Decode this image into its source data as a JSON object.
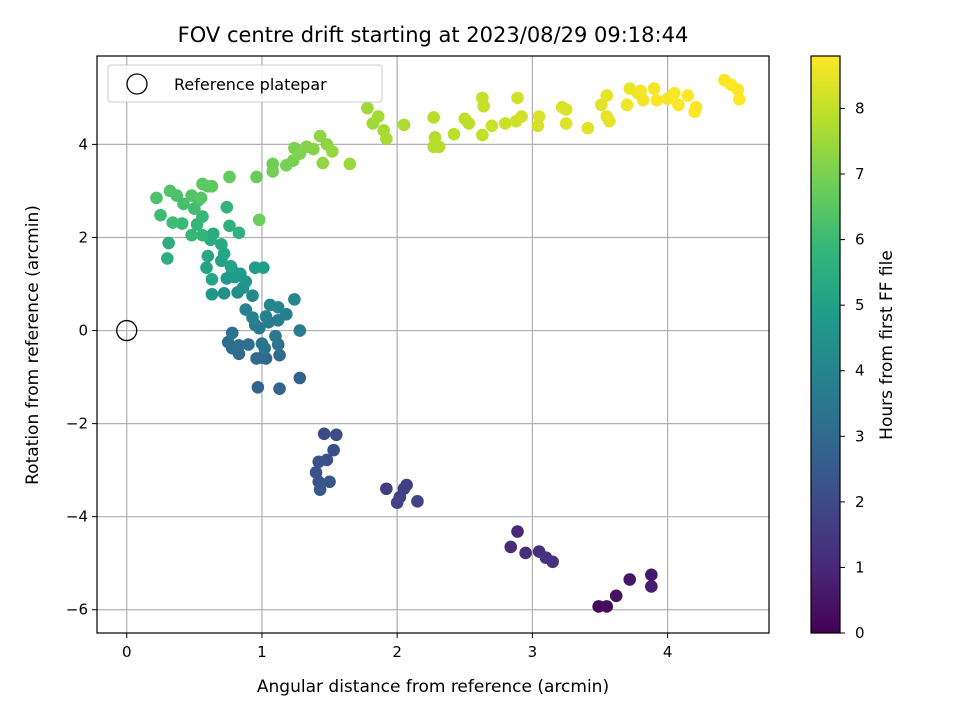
{
  "chart_data": {
    "type": "scatter",
    "title": "FOV centre drift starting at 2023/08/29 09:18:44",
    "xlabel": "Angular distance from reference (arcmin)",
    "ylabel": "Rotation from reference (arcmin)",
    "xlim": [
      -0.22,
      4.75
    ],
    "ylim": [
      -6.5,
      5.9
    ],
    "xticks": [
      0,
      1,
      2,
      3,
      4
    ],
    "yticks": [
      -6,
      -4,
      -2,
      0,
      2,
      4
    ],
    "xtick_labels": [
      "0",
      "1",
      "2",
      "3",
      "4"
    ],
    "ytick_labels": [
      "−6",
      "−4",
      "−2",
      "0",
      "2",
      "4"
    ],
    "grid": true,
    "legend": {
      "position": "top-left",
      "entries": [
        {
          "label": "Reference platepar",
          "marker": "open-circle",
          "x": 0,
          "y": 0
        }
      ]
    },
    "colorbar": {
      "label": "Hours from first FF file",
      "range": [
        0,
        8.8
      ],
      "ticks": [
        0,
        1,
        2,
        3,
        4,
        5,
        6,
        7,
        8
      ],
      "tick_labels": [
        "0",
        "1",
        "2",
        "3",
        "4",
        "5",
        "6",
        "7",
        "8"
      ],
      "colormap": "viridis"
    },
    "colormap_stops": [
      "#440154",
      "#482878",
      "#3e4989",
      "#31688e",
      "#26828e",
      "#1f9e89",
      "#35b779",
      "#6ece58",
      "#b5de2b",
      "#fde725"
    ],
    "points": [
      [
        3.49,
        -5.93,
        0.2
      ],
      [
        3.55,
        -5.93,
        0.3
      ],
      [
        3.62,
        -5.7,
        0.4
      ],
      [
        3.72,
        -5.35,
        0.5
      ],
      [
        3.88,
        -5.25,
        0.6
      ],
      [
        3.88,
        -5.5,
        0.7
      ],
      [
        2.89,
        -4.32,
        1.0
      ],
      [
        2.84,
        -4.65,
        1.1
      ],
      [
        2.95,
        -4.78,
        1.15
      ],
      [
        3.05,
        -4.75,
        1.2
      ],
      [
        3.1,
        -4.88,
        1.25
      ],
      [
        3.15,
        -4.97,
        1.3
      ],
      [
        1.92,
        -3.4,
        1.6
      ],
      [
        2.05,
        -3.4,
        1.65
      ],
      [
        2.07,
        -3.32,
        1.7
      ],
      [
        2.02,
        -3.58,
        1.75
      ],
      [
        2.0,
        -3.7,
        1.8
      ],
      [
        2.15,
        -3.67,
        1.85
      ],
      [
        1.46,
        -2.22,
        2.0
      ],
      [
        1.55,
        -2.24,
        2.05
      ],
      [
        1.53,
        -2.57,
        2.1
      ],
      [
        1.48,
        -2.78,
        2.15
      ],
      [
        1.42,
        -2.82,
        2.2
      ],
      [
        1.4,
        -3.05,
        2.25
      ],
      [
        1.42,
        -3.25,
        2.3
      ],
      [
        1.5,
        -3.25,
        2.35
      ],
      [
        1.43,
        -3.42,
        2.4
      ],
      [
        1.28,
        -1.02,
        2.75
      ],
      [
        0.97,
        -1.22,
        2.8
      ],
      [
        1.13,
        -1.25,
        2.82
      ],
      [
        1.0,
        -0.58,
        2.9
      ],
      [
        1.03,
        -0.6,
        2.95
      ],
      [
        0.96,
        -0.6,
        3.0
      ],
      [
        1.13,
        -0.53,
        3.05
      ],
      [
        0.83,
        -0.5,
        3.1
      ],
      [
        0.78,
        -0.38,
        3.15
      ],
      [
        0.83,
        -0.32,
        3.2
      ],
      [
        0.9,
        -0.3,
        3.22
      ],
      [
        0.75,
        -0.25,
        3.25
      ],
      [
        0.78,
        -0.05,
        3.3
      ],
      [
        1.02,
        -0.38,
        3.35
      ],
      [
        1.12,
        -0.3,
        3.4
      ],
      [
        1.0,
        -0.28,
        3.45
      ],
      [
        1.1,
        -0.12,
        3.5
      ],
      [
        0.98,
        0.05,
        3.55
      ],
      [
        0.95,
        0.12,
        3.6
      ],
      [
        1.05,
        0.18,
        3.65
      ],
      [
        1.12,
        0.22,
        3.7
      ],
      [
        1.28,
        0.0,
        3.75
      ],
      [
        1.18,
        0.35,
        3.8
      ],
      [
        1.03,
        0.3,
        3.85
      ],
      [
        0.93,
        0.28,
        3.9
      ],
      [
        0.88,
        0.45,
        3.95
      ],
      [
        1.06,
        0.55,
        4.0
      ],
      [
        1.12,
        0.5,
        4.05
      ],
      [
        1.24,
        0.67,
        4.1
      ],
      [
        0.93,
        0.75,
        4.2
      ],
      [
        0.82,
        0.82,
        4.3
      ],
      [
        0.86,
        0.92,
        4.4
      ],
      [
        0.72,
        0.8,
        4.5
      ],
      [
        0.63,
        0.78,
        4.6
      ],
      [
        0.88,
        1.05,
        4.65
      ],
      [
        0.74,
        1.12,
        4.7
      ],
      [
        0.8,
        1.15,
        4.75
      ],
      [
        0.84,
        1.22,
        4.8
      ],
      [
        0.78,
        1.3,
        4.85
      ],
      [
        0.95,
        1.35,
        4.9
      ],
      [
        1.01,
        1.35,
        4.95
      ],
      [
        0.77,
        1.38,
        5.0
      ],
      [
        0.7,
        1.5,
        5.05
      ],
      [
        0.59,
        1.35,
        5.1
      ],
      [
        0.63,
        1.1,
        5.15
      ],
      [
        0.72,
        1.65,
        5.2
      ],
      [
        0.6,
        1.6,
        5.25
      ],
      [
        0.7,
        1.85,
        5.3
      ],
      [
        0.62,
        1.95,
        5.35
      ],
      [
        0.64,
        2.08,
        5.4
      ],
      [
        0.31,
        1.88,
        5.45
      ],
      [
        0.3,
        1.55,
        5.5
      ],
      [
        0.76,
        2.25,
        5.6
      ],
      [
        0.83,
        2.1,
        5.65
      ],
      [
        0.74,
        2.65,
        5.7
      ],
      [
        0.56,
        2.05,
        5.75
      ],
      [
        0.52,
        2.28,
        5.8
      ],
      [
        0.48,
        2.05,
        5.85
      ],
      [
        0.56,
        2.45,
        5.9
      ],
      [
        0.41,
        2.3,
        5.95
      ],
      [
        0.25,
        2.48,
        6.0
      ],
      [
        0.34,
        2.32,
        6.05
      ],
      [
        0.5,
        2.62,
        6.1
      ],
      [
        0.42,
        2.72,
        6.15
      ],
      [
        0.53,
        2.8,
        6.2
      ],
      [
        0.37,
        2.9,
        6.25
      ],
      [
        0.22,
        2.85,
        6.3
      ],
      [
        0.32,
        3.0,
        6.35
      ],
      [
        0.48,
        2.9,
        6.4
      ],
      [
        0.55,
        2.85,
        6.45
      ],
      [
        0.6,
        3.1,
        6.5
      ],
      [
        0.56,
        3.15,
        6.55
      ],
      [
        0.63,
        3.1,
        6.6
      ],
      [
        0.76,
        3.3,
        6.7
      ],
      [
        0.96,
        3.3,
        6.75
      ],
      [
        0.98,
        2.38,
        6.8
      ],
      [
        1.08,
        3.58,
        6.85
      ],
      [
        1.08,
        3.42,
        6.9
      ],
      [
        1.18,
        3.55,
        6.95
      ],
      [
        1.23,
        3.65,
        7.0
      ],
      [
        1.24,
        3.92,
        7.05
      ],
      [
        1.28,
        3.8,
        7.1
      ],
      [
        1.33,
        3.95,
        7.15
      ],
      [
        1.38,
        3.9,
        7.2
      ],
      [
        1.43,
        4.18,
        7.25
      ],
      [
        1.48,
        4.0,
        7.3
      ],
      [
        1.45,
        3.6,
        7.35
      ],
      [
        1.52,
        3.85,
        7.4
      ],
      [
        1.65,
        3.58,
        7.45
      ],
      [
        1.78,
        4.78,
        7.5
      ],
      [
        1.82,
        4.45,
        7.55
      ],
      [
        1.86,
        4.6,
        7.6
      ],
      [
        1.9,
        4.3,
        7.62
      ],
      [
        1.92,
        4.12,
        7.65
      ],
      [
        2.05,
        4.42,
        7.7
      ],
      [
        2.27,
        3.95,
        7.75
      ],
      [
        2.28,
        4.15,
        7.8
      ],
      [
        2.31,
        3.95,
        7.82
      ],
      [
        2.27,
        4.58,
        7.85
      ],
      [
        2.42,
        4.22,
        7.9
      ],
      [
        2.5,
        4.55,
        7.92
      ],
      [
        2.53,
        4.45,
        7.95
      ],
      [
        2.63,
        4.2,
        8.0
      ],
      [
        2.63,
        5.0,
        8.02
      ],
      [
        2.64,
        4.82,
        8.05
      ],
      [
        2.7,
        4.4,
        8.1
      ],
      [
        2.8,
        4.45,
        8.12
      ],
      [
        2.88,
        4.5,
        8.15
      ],
      [
        2.89,
        5.0,
        8.18
      ],
      [
        2.92,
        4.6,
        8.2
      ],
      [
        3.04,
        4.4,
        8.25
      ],
      [
        3.05,
        4.6,
        8.28
      ],
      [
        3.22,
        4.8,
        8.3
      ],
      [
        3.25,
        4.75,
        8.32
      ],
      [
        3.25,
        4.45,
        8.35
      ],
      [
        3.41,
        4.35,
        8.38
      ],
      [
        3.51,
        4.85,
        8.4
      ],
      [
        3.55,
        4.6,
        8.45
      ],
      [
        3.55,
        5.05,
        8.48
      ],
      [
        3.57,
        4.5,
        8.5
      ],
      [
        3.72,
        5.2,
        8.55
      ],
      [
        3.7,
        4.85,
        8.58
      ],
      [
        3.78,
        5.1,
        8.6
      ],
      [
        3.82,
        4.95,
        8.62
      ],
      [
        3.8,
        5.15,
        8.65
      ],
      [
        3.9,
        5.2,
        8.68
      ],
      [
        3.92,
        4.95,
        8.7
      ],
      [
        4.0,
        4.98,
        8.72
      ],
      [
        4.05,
        5.1,
        8.74
      ],
      [
        4.08,
        4.85,
        8.76
      ],
      [
        4.15,
        5.05,
        8.78
      ],
      [
        4.2,
        4.7,
        8.8
      ],
      [
        4.21,
        4.8,
        8.8
      ],
      [
        4.42,
        5.38,
        8.8
      ],
      [
        4.47,
        5.28,
        8.8
      ],
      [
        4.52,
        5.17,
        8.8
      ],
      [
        4.53,
        4.97,
        8.8
      ]
    ]
  }
}
